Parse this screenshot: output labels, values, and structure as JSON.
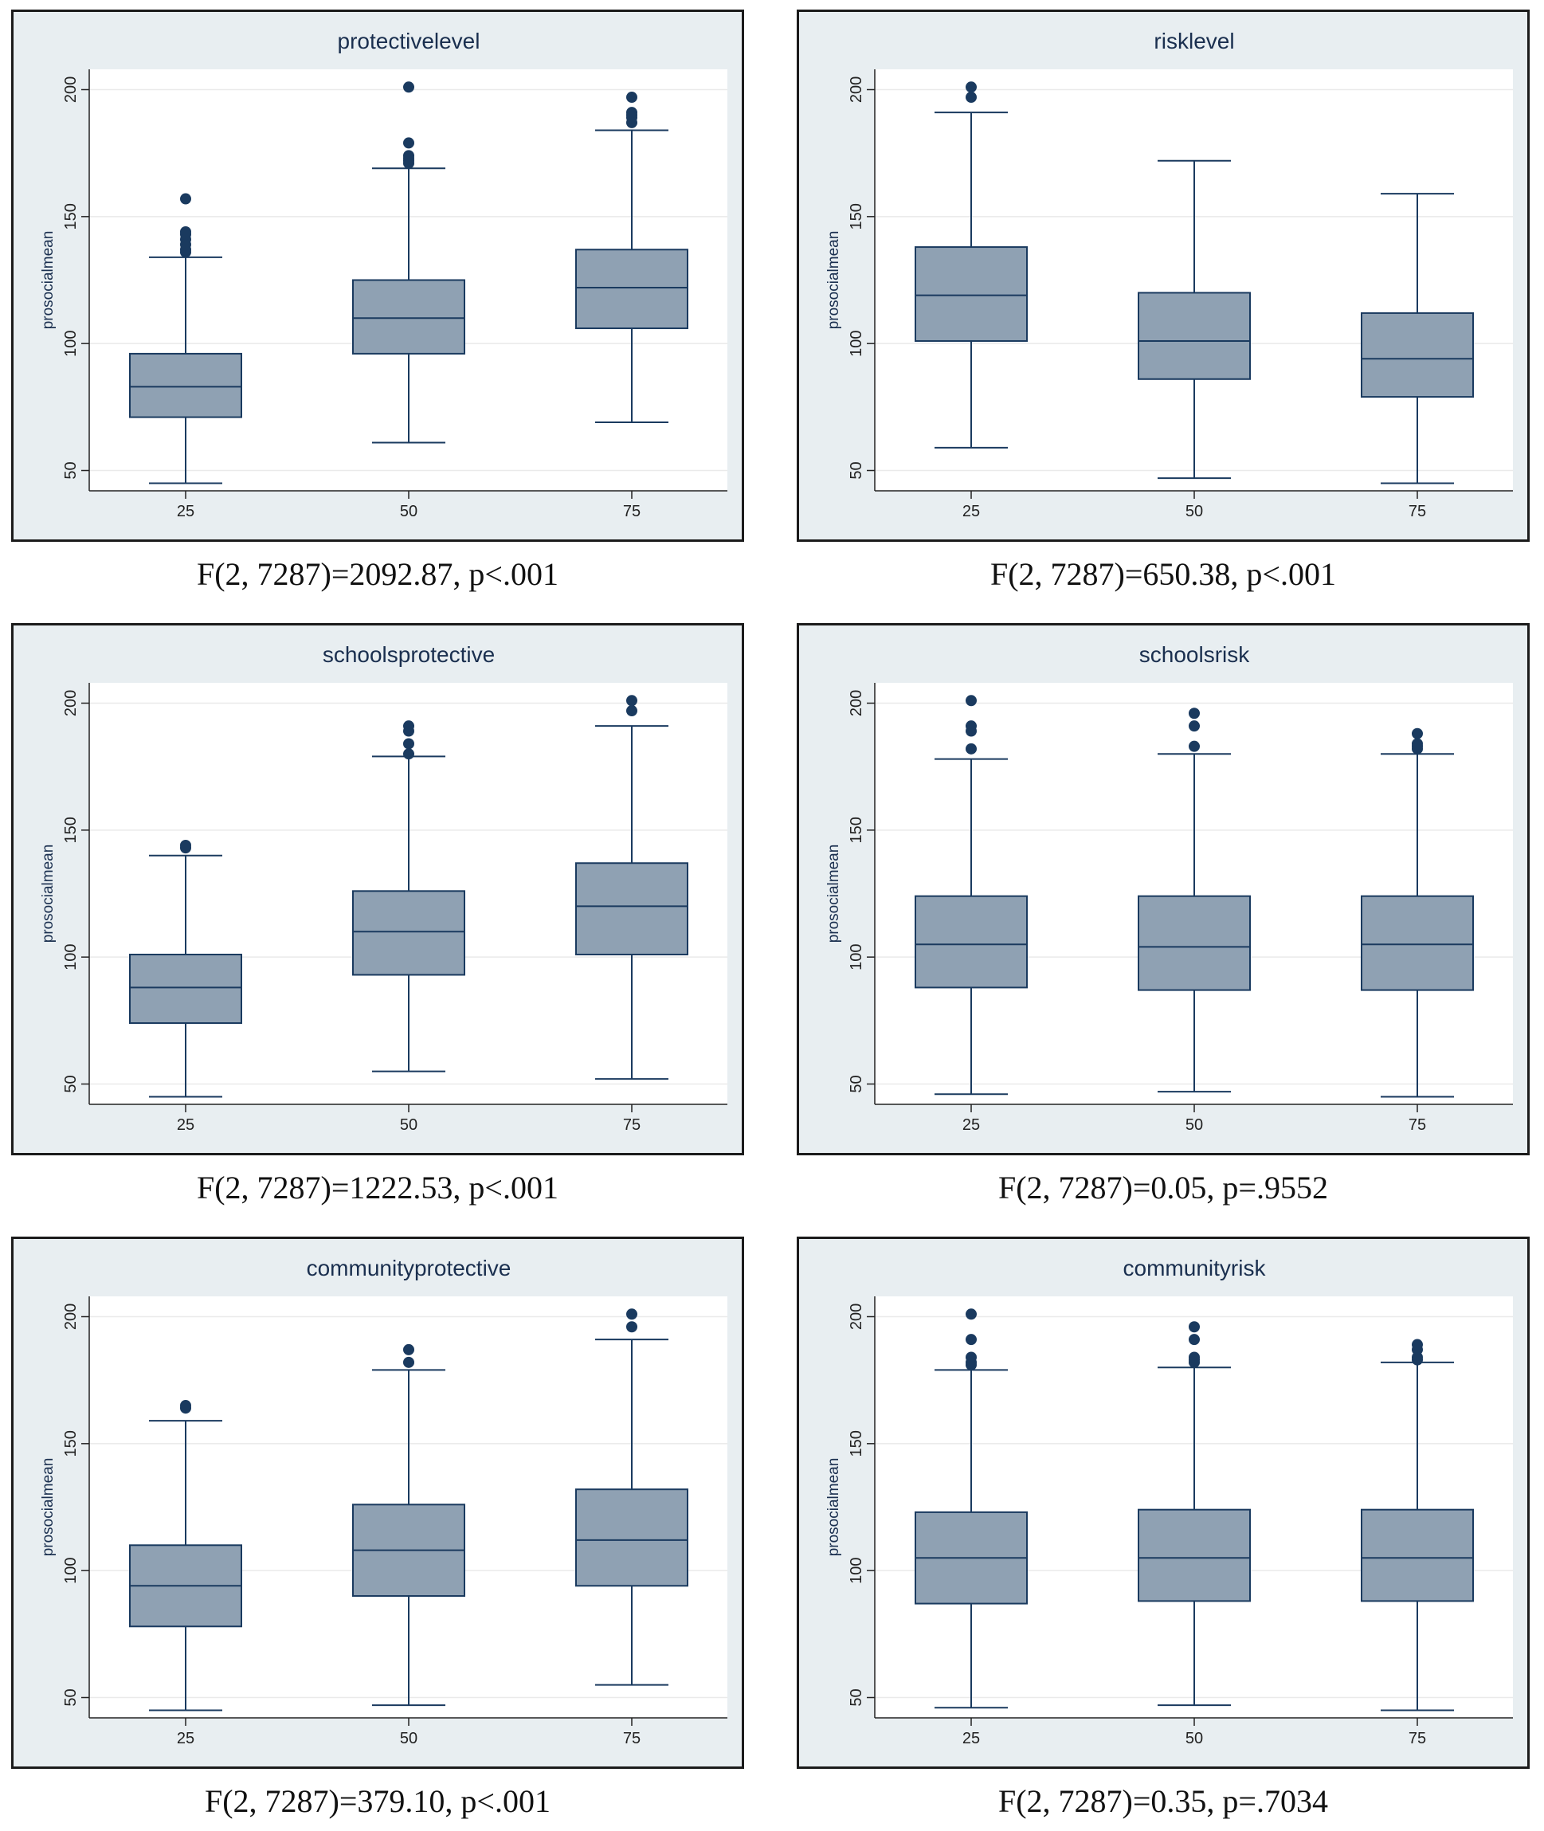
{
  "style": {
    "panel_background": "#e8eef1",
    "plot_background": "#ffffff",
    "box_fill": "#8fa1b3",
    "box_stroke": "#1a3a5f",
    "outlier_color": "#1a3a5f",
    "grid_color": "#eaeaea",
    "text_color": "#1a2f4f"
  },
  "chart_data": [
    {
      "type": "box",
      "title": "protectivelevel",
      "ylabel": "prosocialmean",
      "xlabel": "",
      "ylim": [
        42,
        208
      ],
      "yticks": [
        "50",
        "100",
        "150",
        "200"
      ],
      "categories": [
        "25",
        "50",
        "75"
      ],
      "grid": true,
      "boxes": [
        {
          "whisker_low": 45,
          "q1": 71,
          "median": 83,
          "q3": 96,
          "whisker_high": 134,
          "outliers": [
            136,
            137,
            139,
            141,
            143,
            144,
            157
          ]
        },
        {
          "whisker_low": 61,
          "q1": 96,
          "median": 110,
          "q3": 125,
          "whisker_high": 169,
          "outliers": [
            171,
            172,
            173,
            174,
            179,
            201
          ]
        },
        {
          "whisker_low": 69,
          "q1": 106,
          "median": 122,
          "q3": 137,
          "whisker_high": 184,
          "outliers": [
            187,
            189,
            190,
            191,
            197
          ]
        }
      ],
      "caption": "F(2, 7287)=2092.87, p<.001"
    },
    {
      "type": "box",
      "title": "risklevel",
      "ylabel": "prosocialmean",
      "xlabel": "",
      "ylim": [
        42,
        208
      ],
      "yticks": [
        "50",
        "100",
        "150",
        "200"
      ],
      "categories": [
        "25",
        "50",
        "75"
      ],
      "grid": true,
      "boxes": [
        {
          "whisker_low": 59,
          "q1": 101,
          "median": 119,
          "q3": 138,
          "whisker_high": 191,
          "outliers": [
            197,
            201
          ]
        },
        {
          "whisker_low": 47,
          "q1": 86,
          "median": 101,
          "q3": 120,
          "whisker_high": 172,
          "outliers": []
        },
        {
          "whisker_low": 45,
          "q1": 79,
          "median": 94,
          "q3": 112,
          "whisker_high": 159,
          "outliers": []
        }
      ],
      "caption": "F(2, 7287)=650.38, p<.001"
    },
    {
      "type": "box",
      "title": "schoolsprotective",
      "ylabel": "prosocialmean",
      "xlabel": "",
      "ylim": [
        42,
        208
      ],
      "yticks": [
        "50",
        "100",
        "150",
        "200"
      ],
      "categories": [
        "25",
        "50",
        "75"
      ],
      "grid": true,
      "boxes": [
        {
          "whisker_low": 45,
          "q1": 74,
          "median": 88,
          "q3": 101,
          "whisker_high": 140,
          "outliers": [
            143,
            144
          ]
        },
        {
          "whisker_low": 55,
          "q1": 93,
          "median": 110,
          "q3": 126,
          "whisker_high": 179,
          "outliers": [
            180,
            184,
            189,
            191
          ]
        },
        {
          "whisker_low": 52,
          "q1": 101,
          "median": 120,
          "q3": 137,
          "whisker_high": 191,
          "outliers": [
            197,
            201
          ]
        }
      ],
      "caption": "F(2, 7287)=1222.53, p<.001"
    },
    {
      "type": "box",
      "title": "schoolsrisk",
      "ylabel": "prosocialmean",
      "xlabel": "",
      "ylim": [
        42,
        208
      ],
      "yticks": [
        "50",
        "100",
        "150",
        "200"
      ],
      "categories": [
        "25",
        "50",
        "75"
      ],
      "grid": true,
      "boxes": [
        {
          "whisker_low": 46,
          "q1": 88,
          "median": 105,
          "q3": 124,
          "whisker_high": 178,
          "outliers": [
            182,
            189,
            191,
            201
          ]
        },
        {
          "whisker_low": 47,
          "q1": 87,
          "median": 104,
          "q3": 124,
          "whisker_high": 180,
          "outliers": [
            183,
            191,
            196
          ]
        },
        {
          "whisker_low": 45,
          "q1": 87,
          "median": 105,
          "q3": 124,
          "whisker_high": 180,
          "outliers": [
            182,
            183,
            184,
            188
          ]
        }
      ],
      "caption": "F(2, 7287)=0.05, p=.9552"
    },
    {
      "type": "box",
      "title": "communityprotective",
      "ylabel": "prosocialmean",
      "xlabel": "",
      "ylim": [
        42,
        208
      ],
      "yticks": [
        "50",
        "100",
        "150",
        "200"
      ],
      "categories": [
        "25",
        "50",
        "75"
      ],
      "grid": true,
      "boxes": [
        {
          "whisker_low": 45,
          "q1": 78,
          "median": 94,
          "q3": 110,
          "whisker_high": 159,
          "outliers": [
            164,
            165
          ]
        },
        {
          "whisker_low": 47,
          "q1": 90,
          "median": 108,
          "q3": 126,
          "whisker_high": 179,
          "outliers": [
            182,
            187
          ]
        },
        {
          "whisker_low": 55,
          "q1": 94,
          "median": 112,
          "q3": 132,
          "whisker_high": 191,
          "outliers": [
            196,
            201
          ]
        }
      ],
      "caption": "F(2, 7287)=379.10, p<.001"
    },
    {
      "type": "box",
      "title": "communityrisk",
      "ylabel": "prosocialmean",
      "xlabel": "",
      "ylim": [
        42,
        208
      ],
      "yticks": [
        "50",
        "100",
        "150",
        "200"
      ],
      "categories": [
        "25",
        "50",
        "75"
      ],
      "grid": true,
      "boxes": [
        {
          "whisker_low": 46,
          "q1": 87,
          "median": 105,
          "q3": 123,
          "whisker_high": 179,
          "outliers": [
            181,
            182,
            184,
            191,
            201
          ]
        },
        {
          "whisker_low": 47,
          "q1": 88,
          "median": 105,
          "q3": 124,
          "whisker_high": 180,
          "outliers": [
            182,
            183,
            184,
            191,
            196
          ]
        },
        {
          "whisker_low": 45,
          "q1": 88,
          "median": 105,
          "q3": 124,
          "whisker_high": 182,
          "outliers": [
            183,
            184,
            187,
            189
          ]
        }
      ],
      "caption": "F(2, 7287)=0.35, p=.7034"
    }
  ]
}
